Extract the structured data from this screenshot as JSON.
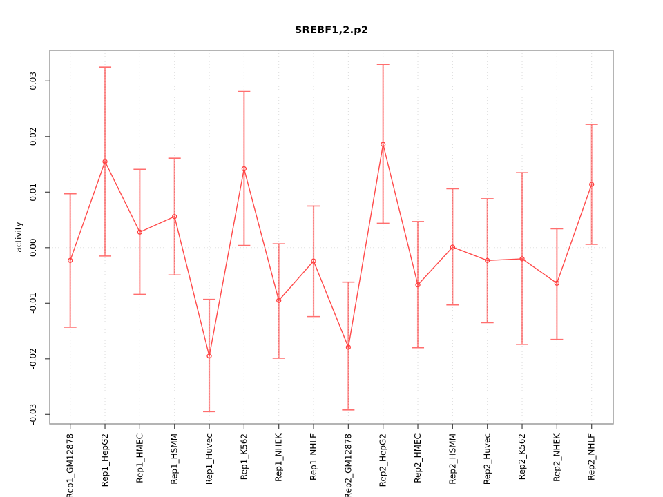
{
  "chart_data": {
    "type": "line",
    "title": "SREBF1,2.p2",
    "xlabel": "",
    "ylabel": "activity",
    "ylim": [
      -0.032,
      0.034
    ],
    "yticks": [
      0.03,
      0.02,
      0.01,
      0.0,
      -0.01,
      -0.02,
      -0.03
    ],
    "ytick_labels": [
      "0.03",
      "0.02",
      "0.01",
      "0.00",
      "-0.01",
      "-0.02",
      "-0.03"
    ],
    "grid": "vertical-dotted-per-category-plus-dotted-zero-line",
    "legend_position": "none",
    "categories": [
      "Rep1_GM12878",
      "Rep1_HepG2",
      "Rep1_HMEC",
      "Rep1_HSMM",
      "Rep1_Huvec",
      "Rep1_K562",
      "Rep1_NHEK",
      "Rep1_NHLF",
      "Rep2_GM12878",
      "Rep2_HepG2",
      "Rep2_HMEC",
      "Rep2_HSMM",
      "Rep2_Huvec",
      "Rep2_K562",
      "Rep2_NHEK",
      "Rep2_NHLF"
    ],
    "series": [
      {
        "name": "activity",
        "values": [
          -0.0023,
          0.0155,
          0.0028,
          0.0056,
          -0.0195,
          0.0142,
          -0.0095,
          -0.0024,
          -0.0179,
          0.0186,
          -0.0067,
          0.0001,
          -0.0023,
          -0.002,
          -0.0064,
          0.0114
        ],
        "error_low": [
          -0.0143,
          -0.0015,
          -0.0084,
          -0.0049,
          -0.0295,
          0.0004,
          -0.0199,
          -0.0124,
          -0.0292,
          0.0044,
          -0.018,
          -0.0103,
          -0.0135,
          -0.0174,
          -0.0165,
          0.0006
        ],
        "error_high": [
          0.0097,
          0.0325,
          0.0141,
          0.0161,
          -0.0093,
          0.0281,
          0.0007,
          0.0075,
          -0.0062,
          0.033,
          0.0047,
          0.0106,
          0.0088,
          0.0135,
          0.0034,
          0.0222
        ]
      }
    ],
    "colors": {
      "line": "#ff4a4a",
      "point_stroke": "#ff3d3d",
      "error_bar": "#ff9a9a",
      "error_bar_dash": "#e04848",
      "error_cap": "#ff6e6e",
      "grid": "#dcdcdc",
      "zero_line": "#e2e2e2",
      "box": "#959595",
      "tick": "#454545",
      "text": "#000000"
    }
  }
}
